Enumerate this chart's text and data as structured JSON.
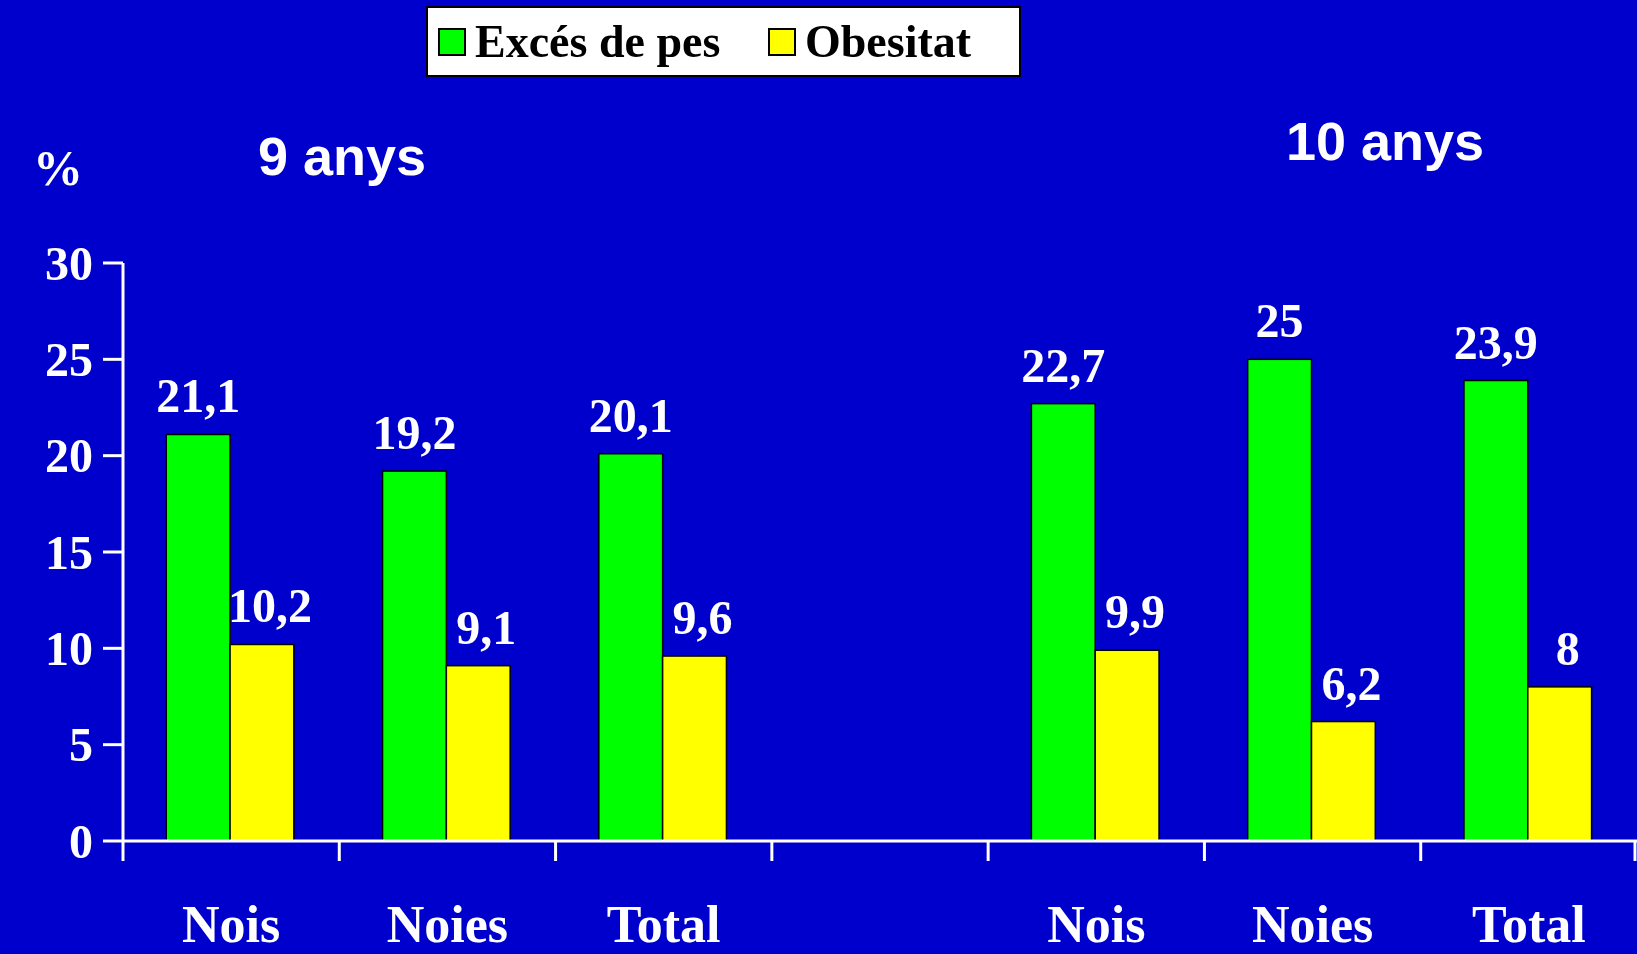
{
  "chart_data": {
    "type": "bar",
    "categories": [
      "Nois",
      "Noies",
      "Total",
      null,
      "Nois",
      "Noies",
      "Total"
    ],
    "series": [
      {
        "name": "Excés de pes",
        "color": "#00ff00",
        "values": [
          21.1,
          19.2,
          20.1,
          null,
          22.7,
          25,
          23.9
        ],
        "value_labels": [
          "21,1",
          "19,2",
          "20,1",
          null,
          "22,7",
          "25",
          "23,9"
        ]
      },
      {
        "name": "Obesitat",
        "color": "#ffff00",
        "values": [
          10.2,
          9.1,
          9.6,
          null,
          9.9,
          6.2,
          8
        ],
        "value_labels": [
          "10,2",
          "9,1",
          "9,6",
          null,
          "9,9",
          "6,2",
          "8"
        ]
      }
    ],
    "ylabel": "%",
    "ylim": [
      0,
      30
    ],
    "yticks": [
      0,
      5,
      10,
      15,
      20,
      25,
      30
    ],
    "legend": "top",
    "grid": false,
    "annotations": [
      "9 anys",
      "10 anys"
    ]
  }
}
